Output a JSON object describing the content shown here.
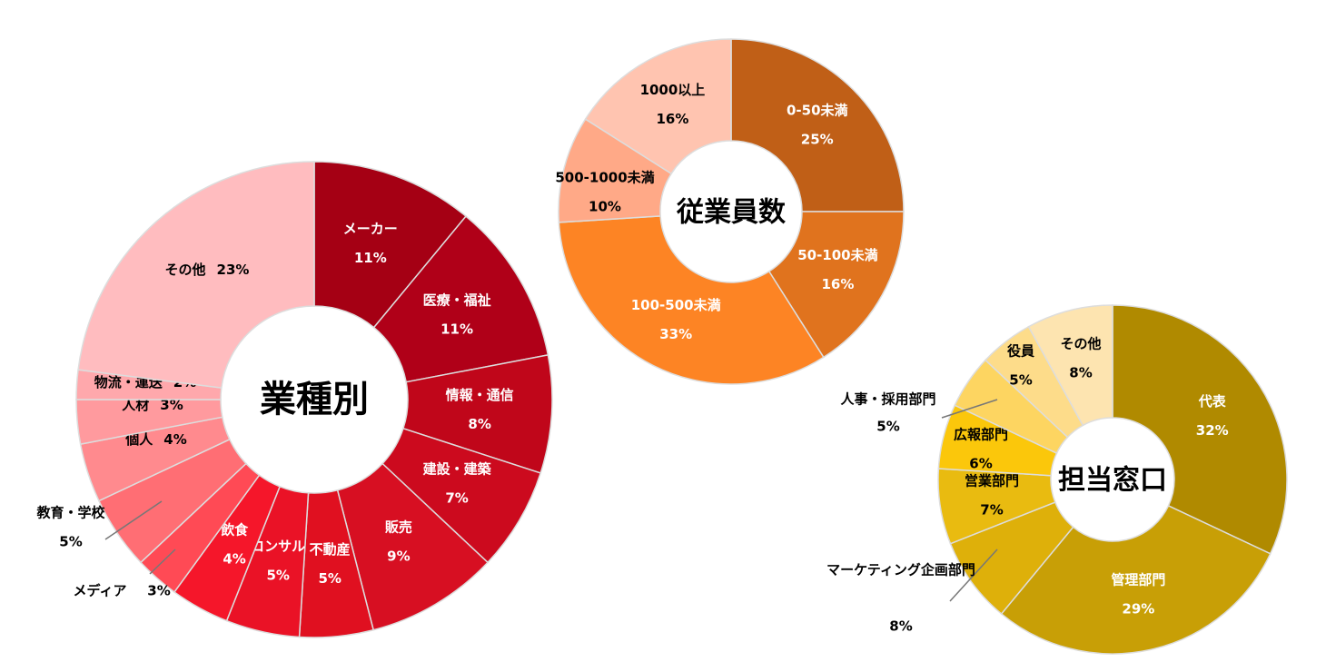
{
  "chart_data": [
    {
      "type": "donut",
      "title": "業種別",
      "categories": [
        "メーカー",
        "医療・福祉",
        "情報・通信",
        "建設・建築",
        "販売",
        "不動産",
        "コンサル",
        "飲食",
        "メディア",
        "教育・学校",
        "個人",
        "人材",
        "物流・運送",
        "その他"
      ],
      "values": [
        11,
        11,
        8,
        7,
        9,
        5,
        5,
        4,
        3,
        5,
        4,
        3,
        2,
        23
      ],
      "value_labels": [
        "11%",
        "11%",
        "8%",
        "7%",
        "9%",
        "5%",
        "5%",
        "4%",
        "3%",
        "5%",
        "4%",
        "3%",
        "2%",
        "23%"
      ],
      "colors": [
        "#a50014",
        "#b00018",
        "#c0061a",
        "#cc0a1e",
        "#d70f22",
        "#e01020",
        "#ea1226",
        "#f5162a",
        "#ff4a55",
        "#ff6e74",
        "#ff8a8e",
        "#ff9a9e",
        "#ffa8ac",
        "#ffbcbf"
      ]
    },
    {
      "type": "donut",
      "title": "従業員数",
      "categories": [
        "0-50未満",
        "50-100未満",
        "100-500未満",
        "500-1000未満",
        "1000以上"
      ],
      "values": [
        25,
        16,
        33,
        10,
        16
      ],
      "value_labels": [
        "25%",
        "16%",
        "33%",
        "10%",
        "16%"
      ],
      "colors": [
        "#c05f17",
        "#e0731e",
        "#fd8424",
        "#ffa987",
        "#ffc4b0"
      ]
    },
    {
      "type": "donut",
      "title": "担当窓口",
      "categories": [
        "代表",
        "管理部門",
        "マーケティング企画部門",
        "営業部門",
        "広報部門",
        "人事・採用部門",
        "役員",
        "その他"
      ],
      "values": [
        32,
        29,
        8,
        7,
        6,
        5,
        5,
        8
      ],
      "value_labels": [
        "32%",
        "29%",
        "8%",
        "7%",
        "6%",
        "5%",
        "5%",
        "8%"
      ],
      "colors": [
        "#b08a00",
        "#c89f06",
        "#deb00a",
        "#e9bb10",
        "#fbc70b",
        "#fdd561",
        "#fddc8a",
        "#fde4b0"
      ]
    }
  ]
}
